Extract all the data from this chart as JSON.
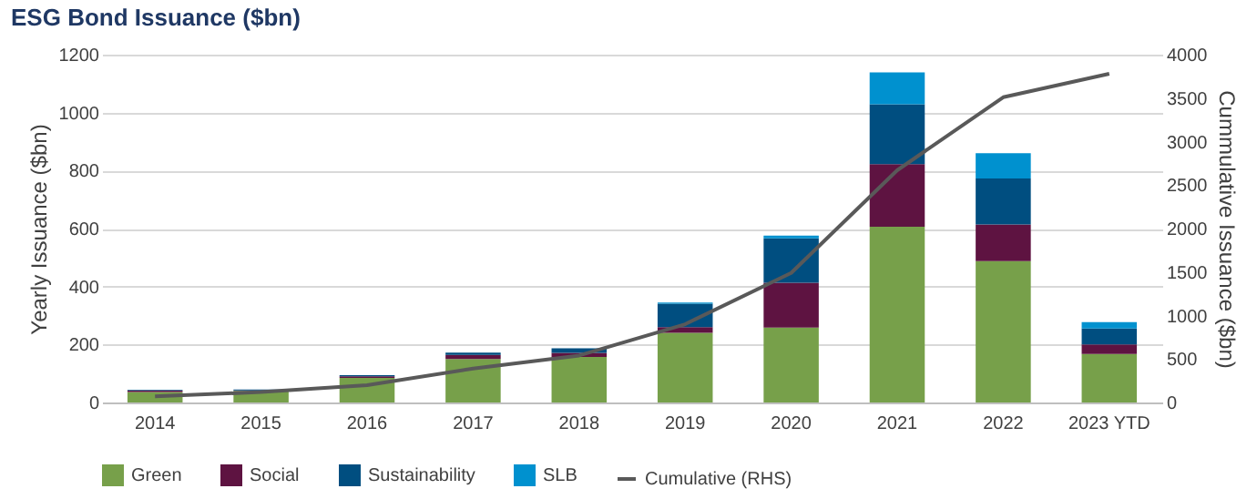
{
  "chart_data": {
    "type": "bar",
    "title": "ESG Bond Issuance ($bn)",
    "ylabel": "Yearly Issuance ($bn)",
    "y2label": "Cummulative Issuance ($bn)",
    "categories": [
      "2014",
      "2015",
      "2016",
      "2017",
      "2018",
      "2019",
      "2020",
      "2021",
      "2022",
      "2023 YTD"
    ],
    "stacked": true,
    "series": [
      {
        "name": "Green",
        "color": "#77a04a",
        "values": [
          36,
          40,
          85,
          150,
          157,
          240,
          258,
          606,
          488,
          167
        ]
      },
      {
        "name": "Social",
        "color": "#5e1341",
        "values": [
          5,
          2,
          5,
          14,
          14,
          20,
          155,
          216,
          126,
          33
        ]
      },
      {
        "name": "Sustainability",
        "color": "#004e80",
        "values": [
          2,
          3,
          4,
          8,
          16,
          81,
          153,
          207,
          159,
          55
        ]
      },
      {
        "name": "SLB",
        "color": "#0091cf",
        "values": [
          0,
          0,
          0,
          null,
          null,
          4,
          10,
          110,
          87,
          22
        ]
      },
      {
        "name": "Cumulative (RHS)",
        "type": "line",
        "axis": "y2",
        "color": "#595959",
        "line_style": "solid",
        "marker": "none",
        "values": [
          70,
          120,
          200,
          390,
          540,
          900,
          1490,
          2670,
          3510,
          3780
        ]
      }
    ],
    "ylim": [
      0,
      1200
    ],
    "yticks": [
      0,
      200,
      400,
      600,
      800,
      1000,
      1200
    ],
    "y2lim": [
      0,
      4000
    ],
    "y2ticks": [
      0,
      500,
      1000,
      1500,
      2000,
      2500,
      3000,
      3500,
      4000
    ],
    "grid": "y",
    "legend": "bottom"
  }
}
